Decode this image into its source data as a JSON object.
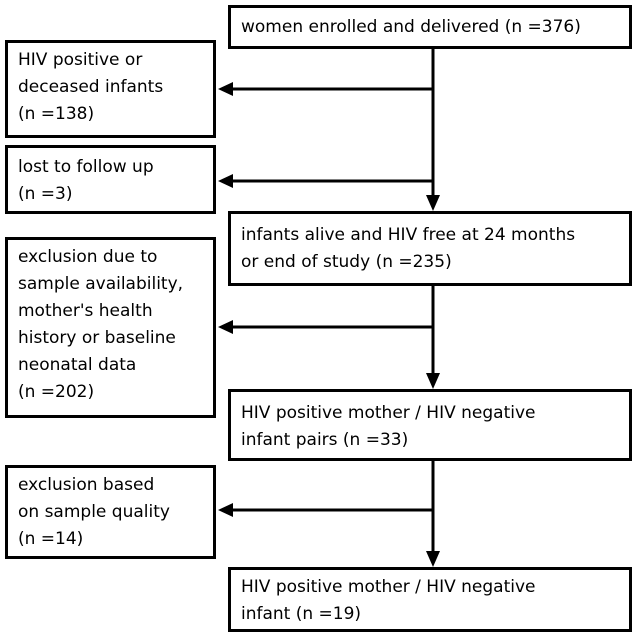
{
  "nodes": [
    {
      "lines": [
        "women enrolled and delivered (n =376)"
      ]
    },
    {
      "lines": [
        "HIV positive or",
        "deceased infants",
        "(n =138)"
      ]
    },
    {
      "lines": [
        "lost to follow up",
        "(n =3)"
      ]
    },
    {
      "lines": [
        "infants alive and HIV free at 24 months",
        "or end of study (n =235)"
      ]
    },
    {
      "lines": [
        "exclusion due to",
        "sample availability,",
        "mother's health",
        "history or baseline",
        "neonatal data",
        "(n =202)"
      ]
    },
    {
      "lines": [
        "HIV positive mother / HIV negative",
        "infant pairs (n =33)"
      ]
    },
    {
      "lines": [
        "exclusion based",
        "on sample quality",
        "(n =14)"
      ]
    },
    {
      "lines": [
        "HIV positive mother / HIV negative",
        "infant (n =19)"
      ]
    }
  ]
}
